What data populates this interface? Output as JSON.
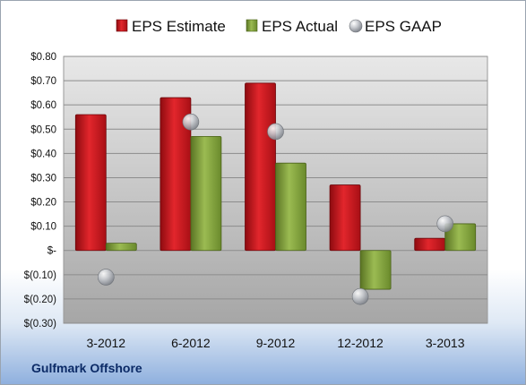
{
  "company": "Gulfmark Offshore",
  "chart_data": {
    "type": "bar",
    "categories": [
      "3-2012",
      "6-2012",
      "9-2012",
      "12-2012",
      "3-2013"
    ],
    "series": [
      {
        "name": "EPS Estimate",
        "type": "bar",
        "color": "#c0161c",
        "values": [
          0.56,
          0.63,
          0.69,
          0.27,
          0.05
        ]
      },
      {
        "name": "EPS Actual",
        "type": "bar",
        "color": "#7a9a36",
        "values": [
          0.03,
          0.47,
          0.36,
          -0.16,
          0.11
        ]
      },
      {
        "name": "EPS GAAP",
        "type": "marker",
        "color": "#a0a4aa",
        "values": [
          -0.11,
          0.53,
          0.49,
          -0.19,
          0.11
        ]
      }
    ],
    "ylim": [
      -0.3,
      0.8
    ],
    "yticks": [
      0.8,
      0.7,
      0.6,
      0.5,
      0.4,
      0.3,
      0.2,
      0.1,
      0.0,
      -0.1,
      -0.2,
      -0.3
    ],
    "ytick_labels": [
      "$0.80",
      "$0.70",
      "$0.60",
      "$0.50",
      "$0.40",
      "$0.30",
      "$0.20",
      "$0.10",
      "$-",
      "$(0.10)",
      "$(0.20)",
      "$(0.30)"
    ],
    "legend_position": "top",
    "grid": true
  }
}
